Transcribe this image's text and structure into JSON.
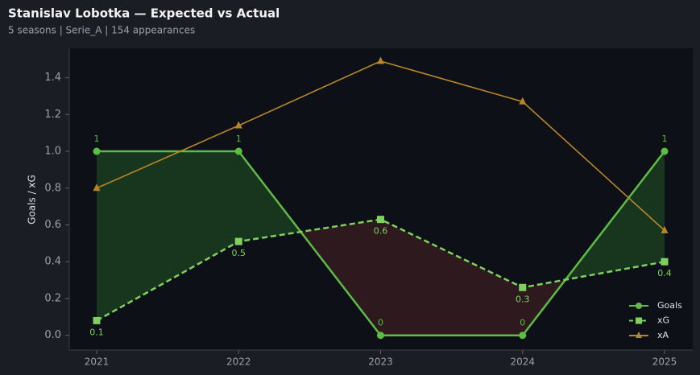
{
  "chart_data": {
    "type": "line",
    "title": "Stanislav Lobotka — Expected vs Actual",
    "subtitle": "5 seasons | Serie_A | 154 appearances",
    "y_label": "Goals / xG",
    "categories": [
      "2021",
      "2022",
      "2023",
      "2024",
      "2025"
    ],
    "series": [
      {
        "name": "Goals",
        "color": "#5dbb46",
        "marker": "circle",
        "dash": false,
        "values": [
          1,
          1,
          0,
          0,
          1
        ],
        "label_side": "above"
      },
      {
        "name": "xG",
        "color": "#7ed05f",
        "marker": "square",
        "dash": true,
        "values": [
          0.08,
          0.51,
          0.63,
          0.26,
          0.4
        ],
        "value_labels": [
          "0.1",
          "0.5",
          "0.6",
          "0.3",
          "0.4"
        ],
        "label_side": "below"
      },
      {
        "name": "xA",
        "color": "#b8862a",
        "marker": "triangle",
        "dash": false,
        "values": [
          0.8,
          1.14,
          1.49,
          1.27,
          0.57
        ]
      }
    ],
    "ylim": [
      -0.08,
      1.56
    ],
    "yticks": [
      {
        "value": 0,
        "label": "0.0"
      },
      0.2,
      0.4,
      0.6,
      0.8,
      {
        "value": 1,
        "label": "1.0"
      },
      1.2,
      1.4
    ],
    "legend": "lower right",
    "fill_above": "#2f7a2a",
    "fill_below": "#6e2a2a"
  }
}
